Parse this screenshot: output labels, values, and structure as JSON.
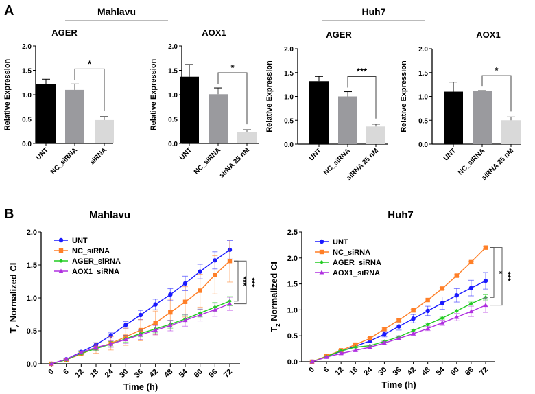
{
  "panel_labels": {
    "a": "A",
    "b": "B"
  },
  "group_headers": {
    "mahlavu": "Mahlavu",
    "huh7": "Huh7"
  },
  "chart_data": [
    {
      "type": "bar",
      "panel": "A",
      "cell_line": "Mahlavu",
      "title": "AGER",
      "ylabel": "Relative Expression",
      "ylim": [
        0,
        2.0
      ],
      "yticks": [
        "0.0",
        "0.5",
        "1.0",
        "1.5",
        "2.0"
      ],
      "categories": [
        "UNT",
        "NC_siRNA",
        "siRNA"
      ],
      "values": [
        1.22,
        1.1,
        0.48
      ],
      "errors": [
        0.1,
        0.12,
        0.07
      ],
      "colors": [
        "#000000",
        "#9a9a9e",
        "#d9d9d9"
      ],
      "significance": {
        "between": [
          1,
          2
        ],
        "label": "*"
      }
    },
    {
      "type": "bar",
      "panel": "A",
      "cell_line": "Mahlavu",
      "title": "AOX1",
      "ylabel": "Relative Expression",
      "ylim": [
        0,
        2.0
      ],
      "yticks": [
        "0.0",
        "0.5",
        "1.0",
        "1.5",
        "2.0"
      ],
      "categories": [
        "UNT",
        "NC_siRNA",
        "sirNA 25 nM"
      ],
      "values": [
        1.37,
        1.01,
        0.23
      ],
      "errors": [
        0.25,
        0.13,
        0.05
      ],
      "colors": [
        "#000000",
        "#9a9a9e",
        "#d9d9d9"
      ],
      "significance": {
        "between": [
          1,
          2
        ],
        "label": "*"
      }
    },
    {
      "type": "bar",
      "panel": "A",
      "cell_line": "Huh7",
      "title": "AGER",
      "ylabel": "Relative Expression",
      "ylim": [
        0,
        2.0
      ],
      "yticks": [
        "0.0",
        "0.5",
        "1.0",
        "1.5",
        "2.0"
      ],
      "categories": [
        "UNT",
        "NC_siRNA",
        "siRNA 25 nM"
      ],
      "values": [
        1.32,
        1.0,
        0.37
      ],
      "errors": [
        0.1,
        0.1,
        0.05
      ],
      "colors": [
        "#000000",
        "#9a9a9e",
        "#d9d9d9"
      ],
      "significance": {
        "between": [
          1,
          2
        ],
        "label": "***"
      }
    },
    {
      "type": "bar",
      "panel": "A",
      "cell_line": "Huh7",
      "title": "AOX1",
      "ylabel": "Relative Expression",
      "ylim": [
        0,
        2.0
      ],
      "yticks": [
        "0.0",
        "0.5",
        "1.0",
        "1.5",
        "2.0"
      ],
      "categories": [
        "UNT",
        "NC_siRNA",
        "siRNA 25 nM"
      ],
      "values": [
        1.1,
        1.11,
        0.5
      ],
      "errors": [
        0.2,
        0.01,
        0.07
      ],
      "colors": [
        "#000000",
        "#9a9a9e",
        "#d9d9d9"
      ],
      "significance": {
        "between": [
          1,
          2
        ],
        "label": "*"
      }
    },
    {
      "type": "line",
      "panel": "B",
      "title": "Mahlavu",
      "xlabel": "Time (h)",
      "ylabel_main": "T",
      "ylabel_sub": "z",
      "ylabel_rest": " Normalized CI",
      "ylim": [
        0,
        2.0
      ],
      "yticks": [
        "0.0",
        "0.5",
        "1.0",
        "1.5",
        "2.0"
      ],
      "x": [
        0,
        6,
        12,
        18,
        24,
        30,
        36,
        42,
        48,
        54,
        60,
        66,
        72
      ],
      "legend": "top-left",
      "series": [
        {
          "name": "UNT",
          "color": "#1a1aff",
          "marker": "circle",
          "values": [
            0,
            0.07,
            0.18,
            0.29,
            0.43,
            0.59,
            0.74,
            0.9,
            1.05,
            1.22,
            1.4,
            1.57,
            1.73
          ],
          "errors": [
            0,
            0.01,
            0.02,
            0.03,
            0.04,
            0.05,
            0.07,
            0.08,
            0.09,
            0.11,
            0.11,
            0.13,
            0.14
          ]
        },
        {
          "name": "NC_siRNA",
          "color": "#ff7f27",
          "marker": "square",
          "values": [
            0,
            0.06,
            0.15,
            0.24,
            0.31,
            0.41,
            0.51,
            0.62,
            0.78,
            0.94,
            1.11,
            1.35,
            1.56
          ],
          "errors": [
            0,
            0.01,
            0.03,
            0.08,
            0.1,
            0.13,
            0.16,
            0.18,
            0.2,
            0.23,
            0.25,
            0.29,
            0.32
          ]
        },
        {
          "name": "AGER_siRNA",
          "color": "#22cc22",
          "marker": "diamond",
          "values": [
            0,
            0.06,
            0.16,
            0.23,
            0.3,
            0.38,
            0.46,
            0.53,
            0.6,
            0.68,
            0.77,
            0.86,
            0.95
          ],
          "errors": [
            0,
            0.01,
            0.02,
            0.03,
            0.04,
            0.05,
            0.05,
            0.06,
            0.06,
            0.06,
            0.06,
            0.07,
            0.07
          ]
        },
        {
          "name": "AOX1_siRNA",
          "color": "#b030e0",
          "marker": "triangle",
          "values": [
            0,
            0.07,
            0.17,
            0.25,
            0.3,
            0.37,
            0.44,
            0.51,
            0.58,
            0.66,
            0.74,
            0.82,
            0.91
          ],
          "errors": [
            0,
            0.01,
            0.02,
            0.04,
            0.05,
            0.06,
            0.07,
            0.07,
            0.08,
            0.09,
            0.09,
            0.1,
            0.1
          ]
        }
      ],
      "significance": [
        {
          "label": "***",
          "between": [
            "NC_siRNA",
            "AGER_siRNA"
          ]
        },
        {
          "label": "***",
          "between": [
            "NC_siRNA",
            "AOX1_siRNA"
          ]
        }
      ]
    },
    {
      "type": "line",
      "panel": "B",
      "title": "Huh7",
      "xlabel": "Time (h)",
      "ylabel_main": "T",
      "ylabel_sub": "z",
      "ylabel_rest": " Normalized CI",
      "ylim": [
        0,
        2.5
      ],
      "yticks": [
        "0.0",
        "0.5",
        "1.0",
        "1.5",
        "2.0",
        "2.5"
      ],
      "x": [
        0,
        6,
        12,
        18,
        24,
        30,
        36,
        42,
        48,
        54,
        60,
        66,
        72
      ],
      "legend": "top-left",
      "series": [
        {
          "name": "UNT",
          "color": "#1a1aff",
          "marker": "circle",
          "values": [
            0,
            0.1,
            0.2,
            0.3,
            0.4,
            0.53,
            0.68,
            0.83,
            0.98,
            1.13,
            1.28,
            1.42,
            1.56
          ],
          "errors": [
            0,
            0.01,
            0.02,
            0.02,
            0.03,
            0.05,
            0.07,
            0.08,
            0.09,
            0.12,
            0.13,
            0.15,
            0.16
          ]
        },
        {
          "name": "NC_siRNA",
          "color": "#ff7f27",
          "marker": "square",
          "values": [
            0,
            0.11,
            0.22,
            0.33,
            0.45,
            0.63,
            0.8,
            0.99,
            1.19,
            1.41,
            1.66,
            1.92,
            2.2
          ],
          "errors": [
            0,
            0.01,
            0.01,
            0.01,
            0.02,
            0.02,
            0.02,
            0.02,
            0.02,
            0.02,
            0.02,
            0.02,
            0.02
          ]
        },
        {
          "name": "AGER_siRNA",
          "color": "#22cc22",
          "marker": "diamond",
          "values": [
            0,
            0.1,
            0.21,
            0.28,
            0.31,
            0.39,
            0.48,
            0.6,
            0.72,
            0.84,
            0.98,
            1.12,
            1.24
          ],
          "errors": [
            0,
            0.01,
            0.01,
            0.01,
            0.01,
            0.01,
            0.02,
            0.02,
            0.02,
            0.02,
            0.02,
            0.03,
            0.05
          ]
        },
        {
          "name": "AOX1_siRNA",
          "color": "#b030e0",
          "marker": "triangle",
          "values": [
            0,
            0.09,
            0.16,
            0.22,
            0.28,
            0.36,
            0.45,
            0.54,
            0.64,
            0.75,
            0.86,
            0.97,
            1.09
          ],
          "errors": [
            0,
            0.01,
            0.02,
            0.02,
            0.03,
            0.03,
            0.03,
            0.03,
            0.04,
            0.05,
            0.07,
            0.1,
            0.14
          ]
        }
      ],
      "significance": [
        {
          "label": "*",
          "between": [
            "NC_siRNA",
            "AGER_siRNA"
          ]
        },
        {
          "label": "***",
          "between": [
            "NC_siRNA",
            "AOX1_siRNA"
          ]
        }
      ]
    }
  ]
}
